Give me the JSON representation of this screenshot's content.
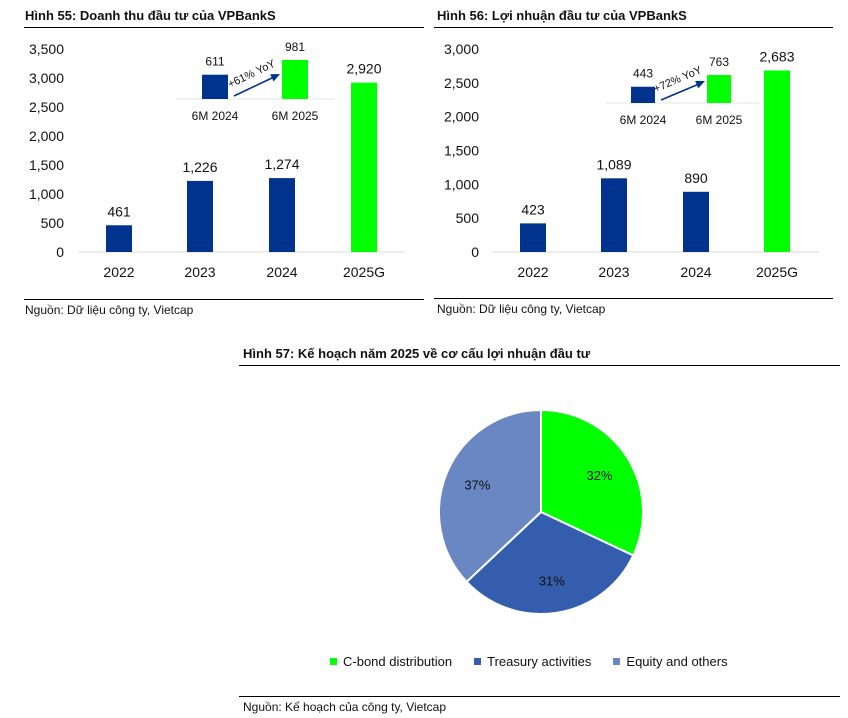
{
  "figures": {
    "fig55": {
      "title": "Hình 55: Doanh thu đầu tư của VPBankS",
      "source": "Nguồn: Dữ liệu công ty, Vietcap"
    },
    "fig56": {
      "title": "Hình 56: Lợi nhuận đầu tư của VPBankS",
      "source": "Nguồn: Dữ liệu công ty, Vietcap"
    },
    "fig57": {
      "title": "Hình 57: Kế hoạch năm 2025 về cơ cấu lợi nhuận đầu tư",
      "source": "Nguồn: Kế hoạch của công ty, Vietcap"
    }
  },
  "colors": {
    "navy": "#00338D",
    "green": "#00FF00",
    "blue": "#345DAE",
    "lightblue": "#6A87C4"
  },
  "chart_data": [
    {
      "id": "fig55",
      "type": "bar",
      "title": "Hình 55: Doanh thu đầu tư của VPBankS",
      "categories": [
        "2022",
        "2023",
        "2024",
        "2025G"
      ],
      "values": [
        461,
        1226,
        1274,
        2920
      ],
      "value_labels": [
        "461",
        "1,226",
        "1,274",
        "2,920"
      ],
      "bar_colors": [
        "#00338D",
        "#00338D",
        "#00338D",
        "#00FF00"
      ],
      "ylim": [
        0,
        3500
      ],
      "yticks": [
        0,
        500,
        1000,
        1500,
        2000,
        2500,
        3000,
        3500
      ],
      "ytick_labels": [
        "0",
        "500",
        "1,000",
        "1,500",
        "2,000",
        "2,500",
        "3,000",
        "3,500"
      ],
      "xlabel": "",
      "ylabel": "",
      "inset": {
        "categories": [
          "6M 2024",
          "6M 2025"
        ],
        "values": [
          611,
          981
        ],
        "value_labels": [
          "611",
          "981"
        ],
        "bar_colors": [
          "#00338D",
          "#00FF00"
        ],
        "annotation": "+61% YoY"
      }
    },
    {
      "id": "fig56",
      "type": "bar",
      "title": "Hình 56: Lợi nhuận đầu tư của VPBankS",
      "categories": [
        "2022",
        "2023",
        "2024",
        "2025G"
      ],
      "values": [
        423,
        1089,
        890,
        2683
      ],
      "value_labels": [
        "423",
        "1,089",
        "890",
        "2,683"
      ],
      "bar_colors": [
        "#00338D",
        "#00338D",
        "#00338D",
        "#00FF00"
      ],
      "ylim": [
        0,
        3000
      ],
      "yticks": [
        0,
        500,
        1000,
        1500,
        2000,
        2500,
        3000
      ],
      "ytick_labels": [
        "0",
        "500",
        "1,000",
        "1,500",
        "2,000",
        "2,500",
        "3,000"
      ],
      "xlabel": "",
      "ylabel": "",
      "inset": {
        "categories": [
          "6M 2024",
          "6M 2025"
        ],
        "values": [
          443,
          763
        ],
        "value_labels": [
          "443",
          "763"
        ],
        "bar_colors": [
          "#00338D",
          "#00FF00"
        ],
        "annotation": "+72% YoY"
      }
    },
    {
      "id": "fig57",
      "type": "pie",
      "title": "Hình 57: Kế hoạch năm 2025 về cơ cấu lợi nhuận đầu tư",
      "labels": [
        "C-bond distribution",
        "Treasury activities",
        "Equity and others"
      ],
      "values": [
        32,
        31,
        37
      ],
      "value_labels": [
        "32%",
        "31%",
        "37%"
      ],
      "colors": [
        "#00FF00",
        "#345DAE",
        "#6A87C4"
      ],
      "legend_position": "bottom"
    }
  ]
}
